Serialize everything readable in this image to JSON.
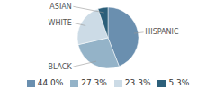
{
  "chart_data": {
    "type": "pie",
    "categories": [
      "HISPANIC",
      "BLACK",
      "WHITE",
      "ASIAN"
    ],
    "values": [
      44.0,
      27.3,
      23.3,
      5.3
    ],
    "value_labels": [
      "44.0%",
      "27.3%",
      "23.3%",
      "5.3%"
    ],
    "colors": [
      "#6a8faf",
      "#94b3c8",
      "#ccdbe6",
      "#2c5f7a"
    ],
    "legend": "bottom"
  }
}
